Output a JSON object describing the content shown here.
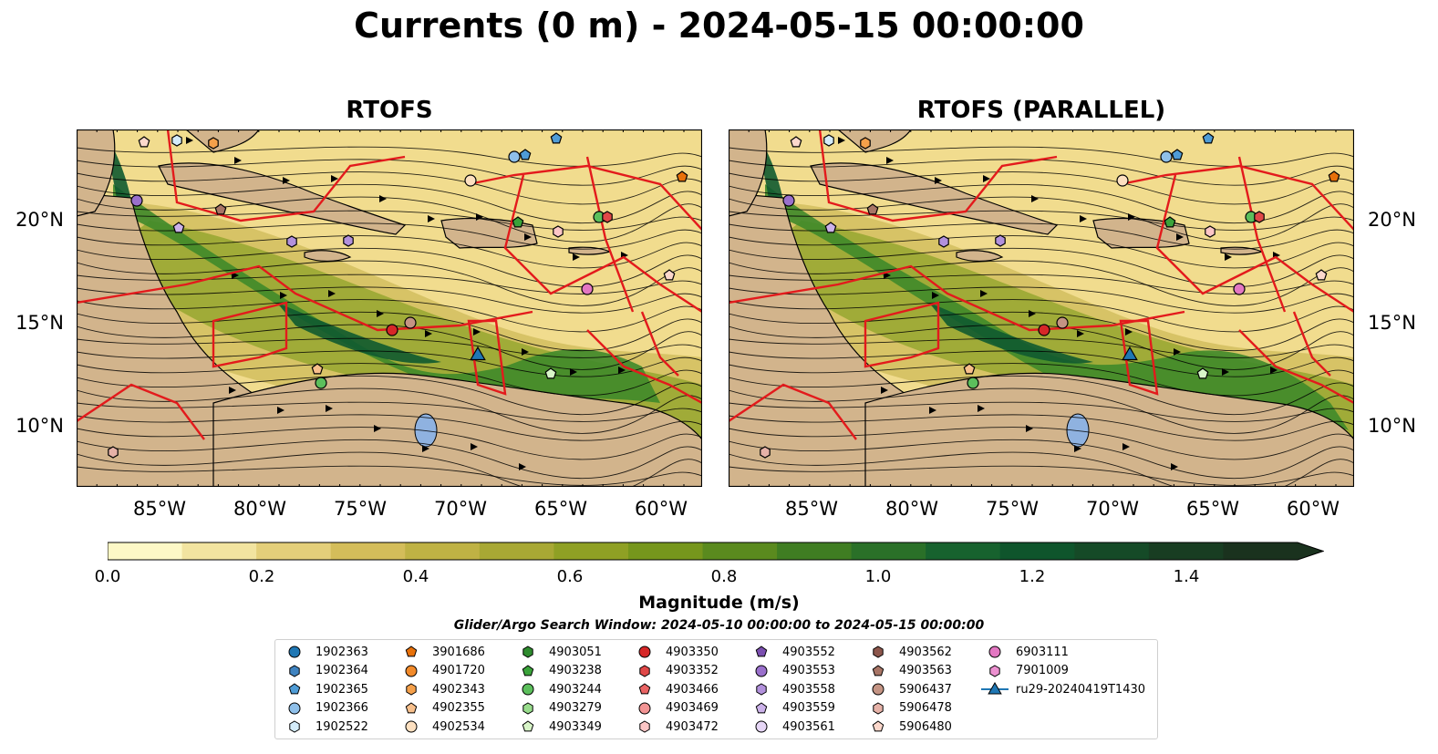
{
  "suptitle": "Currents (0 m) - 2024-05-15 00:00:00",
  "panels": [
    {
      "title": "RTOFS"
    },
    {
      "title": "RTOFS (PARALLEL)"
    }
  ],
  "axes": {
    "lon_labels": [
      "85°W",
      "80°W",
      "75°W",
      "70°W",
      "65°W",
      "60°W"
    ],
    "lat_labels": [
      "20°N",
      "15°N",
      "10°N"
    ]
  },
  "colorbar": {
    "label": "Magnitude (m/s)",
    "ticks": [
      "0.0",
      "0.2",
      "0.4",
      "0.6",
      "0.8",
      "1.0",
      "1.2",
      "1.4"
    ],
    "colors": [
      "#fdf8c6",
      "#f2e4a0",
      "#e4cf7a",
      "#d4bd5a",
      "#bfb244",
      "#a8a834",
      "#8fa024",
      "#76961c",
      "#5a8a1e",
      "#3f7d22",
      "#2a7028",
      "#17622e",
      "#0f552c",
      "#154a27",
      "#183d22",
      "#1a321e"
    ]
  },
  "search_window": "Glider/Argo Search Window: 2024-05-10 00:00:00 to 2024-05-15 00:00:00",
  "legend": [
    {
      "label": "1902363",
      "marker": "circle",
      "color": "#1f77b4"
    },
    {
      "label": "1902364",
      "marker": "hexagon",
      "color": "#3f83c0"
    },
    {
      "label": "1902365",
      "marker": "pentagon",
      "color": "#4f9cd6"
    },
    {
      "label": "1902366",
      "marker": "circle",
      "color": "#8fc0ea"
    },
    {
      "label": "1902522",
      "marker": "hexagon",
      "color": "#d4ecfa"
    },
    {
      "label": "3901686",
      "marker": "pentagon",
      "color": "#e8710a"
    },
    {
      "label": "4901720",
      "marker": "circle",
      "color": "#f28a2a"
    },
    {
      "label": "4902343",
      "marker": "hexagon",
      "color": "#f5a04a"
    },
    {
      "label": "4902355",
      "marker": "pentagon",
      "color": "#f8c08c"
    },
    {
      "label": "4902534",
      "marker": "circle",
      "color": "#fde0c0"
    },
    {
      "label": "4903051",
      "marker": "hexagon",
      "color": "#2e8b2e"
    },
    {
      "label": "4903238",
      "marker": "pentagon",
      "color": "#3aa33a"
    },
    {
      "label": "4903244",
      "marker": "circle",
      "color": "#5cbf5c"
    },
    {
      "label": "4903279",
      "marker": "hexagon",
      "color": "#98dc8c"
    },
    {
      "label": "4903349",
      "marker": "pentagon",
      "color": "#d8f5c8"
    },
    {
      "label": "4903350",
      "marker": "circle",
      "color": "#d62728"
    },
    {
      "label": "4903352",
      "marker": "hexagon",
      "color": "#e04848"
    },
    {
      "label": "4903466",
      "marker": "pentagon",
      "color": "#ea6464"
    },
    {
      "label": "4903469",
      "marker": "circle",
      "color": "#f29494"
    },
    {
      "label": "4903472",
      "marker": "hexagon",
      "color": "#fcc6c6"
    },
    {
      "label": "4903552",
      "marker": "pentagon",
      "color": "#7b4fb0"
    },
    {
      "label": "4903553",
      "marker": "circle",
      "color": "#9a70cc"
    },
    {
      "label": "4903558",
      "marker": "hexagon",
      "color": "#b291dc"
    },
    {
      "label": "4903559",
      "marker": "pentagon",
      "color": "#ccb2ea"
    },
    {
      "label": "4903561",
      "marker": "circle",
      "color": "#e6d6f6"
    },
    {
      "label": "4903562",
      "marker": "hexagon",
      "color": "#8c564b"
    },
    {
      "label": "4903563",
      "marker": "pentagon",
      "color": "#a87566"
    },
    {
      "label": "5906437",
      "marker": "circle",
      "color": "#c49484"
    },
    {
      "label": "5906478",
      "marker": "hexagon",
      "color": "#e6b2a8"
    },
    {
      "label": "5906480",
      "marker": "pentagon",
      "color": "#fcd8cc"
    },
    {
      "label": "6903111",
      "marker": "circle",
      "color": "#e377c2"
    },
    {
      "label": "7901009",
      "marker": "hexagon",
      "color": "#ec90d0"
    },
    {
      "label": "ru29-20240419T1430",
      "marker": "triangle-line",
      "color": "#1f77b4"
    }
  ],
  "glider_marker": {
    "label": "ru29-20240419T1430",
    "color": "#1f77b4"
  }
}
